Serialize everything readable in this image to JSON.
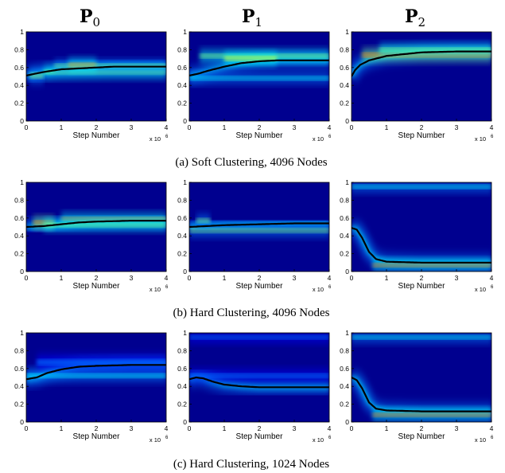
{
  "figure": {
    "column_titles": [
      "P",
      "P",
      "P"
    ],
    "column_subscripts": [
      "0",
      "1",
      "2"
    ],
    "row_captions": [
      "(a) Soft Clustering, 4096 Nodes",
      "(b) Hard Clustering, 4096 Nodes",
      "(c) Hard Clustering, 1024 Nodes"
    ],
    "xlabel": "Step Number",
    "x_multiplier_base": "x 10",
    "x_multiplier_exp": "6",
    "xticks": [
      "0",
      "1",
      "2",
      "3",
      "4"
    ],
    "yticks": [
      "0",
      "0.2",
      "0.4",
      "0.6",
      "0.8",
      "1"
    ],
    "colors": {
      "background": "#00008f",
      "mean_line": "#000000",
      "colormap": [
        "#00008f",
        "#0000ff",
        "#0080ff",
        "#00ffff",
        "#80ff80",
        "#ffff00",
        "#ff8000",
        "#ff0000",
        "#800000"
      ]
    }
  },
  "chart_data": [
    {
      "type": "heatmap",
      "panel": "a-P0",
      "xlim": [
        0,
        4
      ],
      "ylim": [
        0,
        1
      ],
      "mean": [
        [
          0,
          0.51
        ],
        [
          0.25,
          0.53
        ],
        [
          0.5,
          0.55
        ],
        [
          1,
          0.58
        ],
        [
          1.5,
          0.59
        ],
        [
          2,
          0.6
        ],
        [
          2.5,
          0.61
        ],
        [
          3,
          0.61
        ],
        [
          4,
          0.61
        ]
      ],
      "bands": [
        {
          "x0": 0.1,
          "x1": 0.5,
          "y": 0.51,
          "w": 0.04,
          "i": 0.5
        },
        {
          "x0": 0.5,
          "x1": 4,
          "y": 0.55,
          "w": 0.03,
          "i": 0.55
        },
        {
          "x0": 0.8,
          "x1": 4,
          "y": 0.62,
          "w": 0.025,
          "i": 0.5
        },
        {
          "x0": 1.2,
          "x1": 2.0,
          "y": 0.63,
          "w": 0.03,
          "i": 0.7
        }
      ]
    },
    {
      "type": "heatmap",
      "panel": "a-P1",
      "xlim": [
        0,
        4
      ],
      "ylim": [
        0,
        1
      ],
      "mean": [
        [
          0,
          0.51
        ],
        [
          0.25,
          0.53
        ],
        [
          0.5,
          0.56
        ],
        [
          1,
          0.61
        ],
        [
          1.5,
          0.65
        ],
        [
          2,
          0.67
        ],
        [
          2.5,
          0.68
        ],
        [
          3,
          0.68
        ],
        [
          4,
          0.68
        ]
      ],
      "bands": [
        {
          "x0": 0,
          "x1": 4,
          "y": 0.48,
          "w": 0.025,
          "i": 0.4
        },
        {
          "x0": 0.3,
          "x1": 4,
          "y": 0.73,
          "w": 0.03,
          "i": 0.55
        },
        {
          "x0": 1.0,
          "x1": 2.5,
          "y": 0.7,
          "w": 0.03,
          "i": 0.6
        }
      ]
    },
    {
      "type": "heatmap",
      "panel": "a-P2",
      "xlim": [
        0,
        4
      ],
      "ylim": [
        0,
        1
      ],
      "mean": [
        [
          0,
          0.5
        ],
        [
          0.1,
          0.57
        ],
        [
          0.25,
          0.63
        ],
        [
          0.5,
          0.68
        ],
        [
          1,
          0.73
        ],
        [
          1.5,
          0.75
        ],
        [
          2,
          0.77
        ],
        [
          3,
          0.78
        ],
        [
          4,
          0.78
        ]
      ],
      "bands": [
        {
          "x0": 0.3,
          "x1": 4,
          "y": 0.74,
          "w": 0.03,
          "i": 0.75
        },
        {
          "x0": 0.8,
          "x1": 4,
          "y": 0.8,
          "w": 0.025,
          "i": 0.55
        }
      ]
    },
    {
      "type": "heatmap",
      "panel": "b-P0",
      "xlim": [
        0,
        4
      ],
      "ylim": [
        0,
        1
      ],
      "mean": [
        [
          0,
          0.5
        ],
        [
          0.5,
          0.51
        ],
        [
          1,
          0.53
        ],
        [
          1.5,
          0.55
        ],
        [
          2,
          0.56
        ],
        [
          3,
          0.57
        ],
        [
          4,
          0.57
        ]
      ],
      "bands": [
        {
          "x0": 0.2,
          "x1": 0.8,
          "y": 0.55,
          "w": 0.025,
          "i": 0.8
        },
        {
          "x0": 1,
          "x1": 4,
          "y": 0.59,
          "w": 0.025,
          "i": 0.7
        },
        {
          "x0": 0.5,
          "x1": 4,
          "y": 0.52,
          "w": 0.025,
          "i": 0.55
        }
      ]
    },
    {
      "type": "heatmap",
      "panel": "b-P1",
      "xlim": [
        0,
        4
      ],
      "ylim": [
        0,
        1
      ],
      "mean": [
        [
          0,
          0.5
        ],
        [
          0.5,
          0.51
        ],
        [
          1,
          0.52
        ],
        [
          2,
          0.53
        ],
        [
          3,
          0.54
        ],
        [
          4,
          0.54
        ]
      ],
      "bands": [
        {
          "x0": 0,
          "x1": 4,
          "y": 0.46,
          "w": 0.03,
          "i": 0.45
        },
        {
          "x0": 0.2,
          "x1": 0.6,
          "y": 0.57,
          "w": 0.03,
          "i": 0.45
        }
      ]
    },
    {
      "type": "heatmap",
      "panel": "b-P2",
      "xlim": [
        0,
        4
      ],
      "ylim": [
        0,
        1
      ],
      "mean": [
        [
          0,
          0.49
        ],
        [
          0.15,
          0.47
        ],
        [
          0.3,
          0.38
        ],
        [
          0.5,
          0.22
        ],
        [
          0.7,
          0.14
        ],
        [
          1,
          0.11
        ],
        [
          2,
          0.1
        ],
        [
          4,
          0.1
        ]
      ],
      "bands": [
        {
          "x0": 0,
          "x1": 4,
          "y": 0.95,
          "w": 0.015,
          "i": 0.35
        },
        {
          "x0": 0.6,
          "x1": 4,
          "y": 0.07,
          "w": 0.025,
          "i": 0.7
        }
      ]
    },
    {
      "type": "heatmap",
      "panel": "c-P0",
      "xlim": [
        0,
        4
      ],
      "ylim": [
        0,
        1
      ],
      "mean": [
        [
          0,
          0.48
        ],
        [
          0.3,
          0.5
        ],
        [
          0.6,
          0.55
        ],
        [
          1,
          0.59
        ],
        [
          1.5,
          0.62
        ],
        [
          2,
          0.63
        ],
        [
          3,
          0.64
        ],
        [
          4,
          0.64
        ]
      ],
      "bands": [
        {
          "x0": 0,
          "x1": 4,
          "y": 0.52,
          "w": 0.03,
          "i": 0.35
        },
        {
          "x0": 0.3,
          "x1": 4,
          "y": 0.67,
          "w": 0.04,
          "i": 0.3
        }
      ]
    },
    {
      "type": "heatmap",
      "panel": "c-P1",
      "xlim": [
        0,
        4
      ],
      "ylim": [
        0,
        1
      ],
      "mean": [
        [
          0,
          0.48
        ],
        [
          0.2,
          0.5
        ],
        [
          0.4,
          0.49
        ],
        [
          0.7,
          0.45
        ],
        [
          1,
          0.42
        ],
        [
          1.5,
          0.4
        ],
        [
          2,
          0.39
        ],
        [
          3,
          0.39
        ],
        [
          4,
          0.39
        ]
      ],
      "bands": [
        {
          "x0": 0,
          "x1": 4,
          "y": 0.52,
          "w": 0.03,
          "i": 0.3
        },
        {
          "x0": 0,
          "x1": 4,
          "y": 0.95,
          "w": 0.015,
          "i": 0.25
        }
      ]
    },
    {
      "type": "heatmap",
      "panel": "c-P2",
      "xlim": [
        0,
        4
      ],
      "ylim": [
        0,
        1
      ],
      "mean": [
        [
          0,
          0.5
        ],
        [
          0.15,
          0.47
        ],
        [
          0.3,
          0.38
        ],
        [
          0.5,
          0.22
        ],
        [
          0.7,
          0.15
        ],
        [
          1,
          0.13
        ],
        [
          2,
          0.12
        ],
        [
          4,
          0.12
        ]
      ],
      "bands": [
        {
          "x0": 0,
          "x1": 4,
          "y": 0.95,
          "w": 0.015,
          "i": 0.4
        },
        {
          "x0": 0.6,
          "x1": 4,
          "y": 0.08,
          "w": 0.025,
          "i": 0.7
        }
      ]
    }
  ]
}
